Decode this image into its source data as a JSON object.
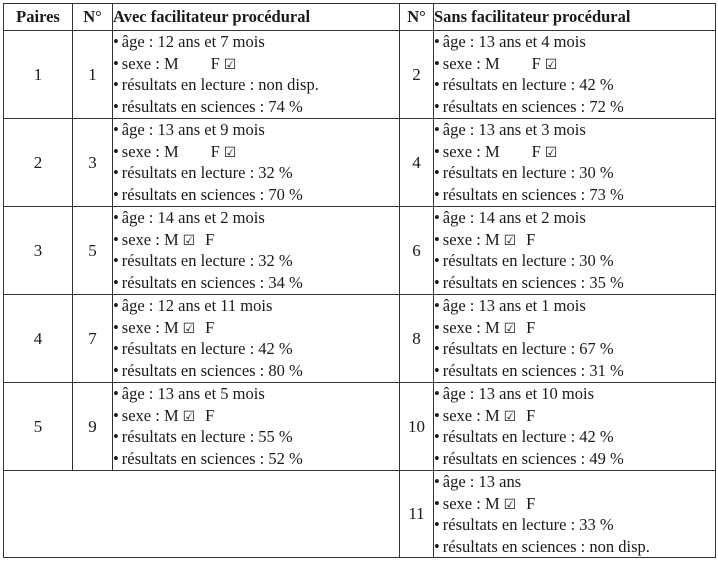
{
  "headers": {
    "paires": "Paires",
    "no_left": "N°",
    "avec": "Avec facilitateur procédural",
    "no_right": "N°",
    "sans": "Sans facilitateur procédural"
  },
  "labels": {
    "bullet": "•",
    "sexe": "sexe :",
    "m": "M",
    "f": "F",
    "check": "☑"
  },
  "rows": [
    {
      "pair": "1",
      "left": {
        "no": "1",
        "age": "âge : 12 ans et 7 mois",
        "sex": "F",
        "lecture": "résultats en lecture : non disp.",
        "sciences": "résultats en sciences : 74 %"
      },
      "right": {
        "no": "2",
        "age": "âge : 13 ans et 4 mois",
        "sex": "F",
        "lecture": "résultats en lecture : 42 %",
        "sciences": "résultats en sciences : 72 %"
      }
    },
    {
      "pair": "2",
      "left": {
        "no": "3",
        "age": "âge : 13 ans et 9 mois",
        "sex": "F",
        "lecture": "résultats en lecture : 32 %",
        "sciences": "résultats en sciences : 70 %"
      },
      "right": {
        "no": "4",
        "age": "âge : 13 ans et 3 mois",
        "sex": "F",
        "lecture": "résultats en lecture : 30 %",
        "sciences": "résultats en sciences : 73 %"
      }
    },
    {
      "pair": "3",
      "left": {
        "no": "5",
        "age": "âge : 14 ans et 2 mois",
        "sex": "M",
        "lecture": "résultats en lecture : 32 %",
        "sciences": "résultats en sciences : 34 %"
      },
      "right": {
        "no": "6",
        "age": "âge : 14 ans et 2 mois",
        "sex": "M",
        "lecture": "résultats en lecture : 30 %",
        "sciences": "résultats en sciences : 35 %"
      }
    },
    {
      "pair": "4",
      "left": {
        "no": "7",
        "age": "âge : 12 ans et 11 mois",
        "sex": "M",
        "lecture": "résultats en lecture : 42 %",
        "sciences": "résultats en sciences : 80 %"
      },
      "right": {
        "no": "8",
        "age": "âge : 13 ans et 1 mois",
        "sex": "M",
        "lecture": "résultats en lecture : 67 %",
        "sciences": "résultats en sciences : 31 %"
      }
    },
    {
      "pair": "5",
      "left": {
        "no": "9",
        "age": "âge : 13 ans et 5 mois",
        "sex": "M",
        "lecture": "résultats en lecture : 55 %",
        "sciences": "résultats en sciences : 52 %"
      },
      "right": {
        "no": "10",
        "age": "âge : 13 ans et 10 mois",
        "sex": "M",
        "lecture": "résultats en lecture : 42 %",
        "sciences": "résultats en sciences : 49 %"
      }
    }
  ],
  "extra": {
    "no": "11",
    "age": "âge : 13 ans",
    "sex": "M",
    "lecture": "résultats en lecture : 33 %",
    "sciences": "résultats en sciences : non disp."
  }
}
